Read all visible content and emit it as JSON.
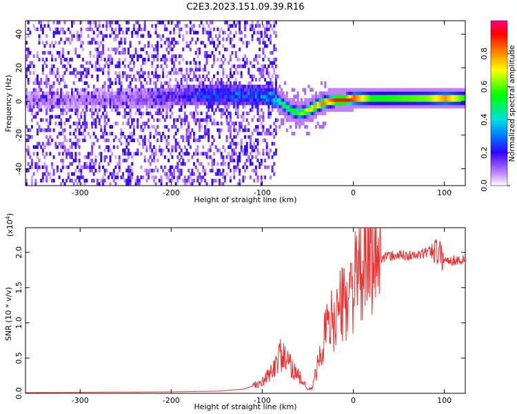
{
  "title": "C2E3.2023.151.09.39.R16",
  "chart_data": [
    {
      "type": "heatmap",
      "name": "spectrogram",
      "xlabel": "Height of straight line (km)",
      "ylabel": "Frequency (Hz)",
      "xlim": [
        -360,
        123
      ],
      "ylim": [
        -50,
        48
      ],
      "xticks": [
        -300,
        -200,
        -100,
        0,
        100
      ],
      "xtick_labels": [
        "-300",
        "-200",
        "-100",
        "0",
        "100"
      ],
      "yticks": [
        -40,
        -20,
        0,
        20,
        40
      ],
      "ytick_labels": [
        "-40",
        "-20",
        "0",
        "20",
        "40"
      ],
      "colorbar": {
        "label": "Normalized spectral amplitude",
        "range": [
          0,
          1
        ],
        "ticks": [
          0.0,
          0.2,
          0.4,
          0.6,
          0.8
        ],
        "tick_labels": [
          "0.0",
          "0.2",
          "0.4",
          "0.6",
          "0.8"
        ]
      },
      "ridge": {
        "description_points_x": [
          -360,
          -300,
          -250,
          -200,
          -150,
          -100,
          -90,
          -80,
          -70,
          -60,
          -50,
          -40,
          -30,
          -20,
          -10,
          0,
          20,
          50,
          80,
          100,
          123
        ],
        "frequency_hz": [
          0,
          0,
          1,
          2,
          3,
          3,
          2,
          -2,
          -6,
          -8,
          -6,
          -3,
          -1,
          0,
          0,
          1,
          1,
          1,
          1,
          1,
          1
        ],
        "amplitude": [
          0.1,
          0.1,
          0.12,
          0.2,
          0.3,
          0.35,
          0.4,
          0.5,
          0.55,
          0.6,
          0.75,
          0.8,
          0.85,
          0.9,
          0.9,
          0.95,
          0.6,
          0.65,
          0.7,
          0.9,
          0.6
        ]
      }
    },
    {
      "type": "line",
      "name": "snr",
      "color": "#ee3333",
      "xlabel": "Height of straight line (km)",
      "ylabel": "SNR (10 * v/v)",
      "scale_label": "(x10",
      "scale_exp": "4",
      "scale_close": ")",
      "xlim": [
        -360,
        123
      ],
      "ylim": [
        0,
        23500
      ],
      "xticks": [
        -300,
        -200,
        -100,
        0,
        100
      ],
      "xtick_labels": [
        "-300",
        "-200",
        "-100",
        "0",
        "100"
      ],
      "yticks": [
        0,
        5000,
        10000,
        15000,
        20000
      ],
      "ytick_labels": [
        "0.0",
        "0.5",
        "1.0",
        "1.5",
        "2.0"
      ],
      "x": [
        -360,
        -300,
        -200,
        -150,
        -120,
        -100,
        -90,
        -80,
        -70,
        -60,
        -50,
        -45,
        -40,
        -30,
        -20,
        -10,
        0,
        10,
        20,
        30,
        50,
        70,
        90,
        100,
        110,
        123
      ],
      "values": [
        100,
        150,
        200,
        300,
        600,
        1500,
        3000,
        5500,
        4000,
        2500,
        500,
        800,
        3500,
        9000,
        11000,
        13000,
        15500,
        17500,
        18800,
        19300,
        19600,
        19500,
        20500,
        18900,
        18900,
        18900
      ]
    }
  ]
}
